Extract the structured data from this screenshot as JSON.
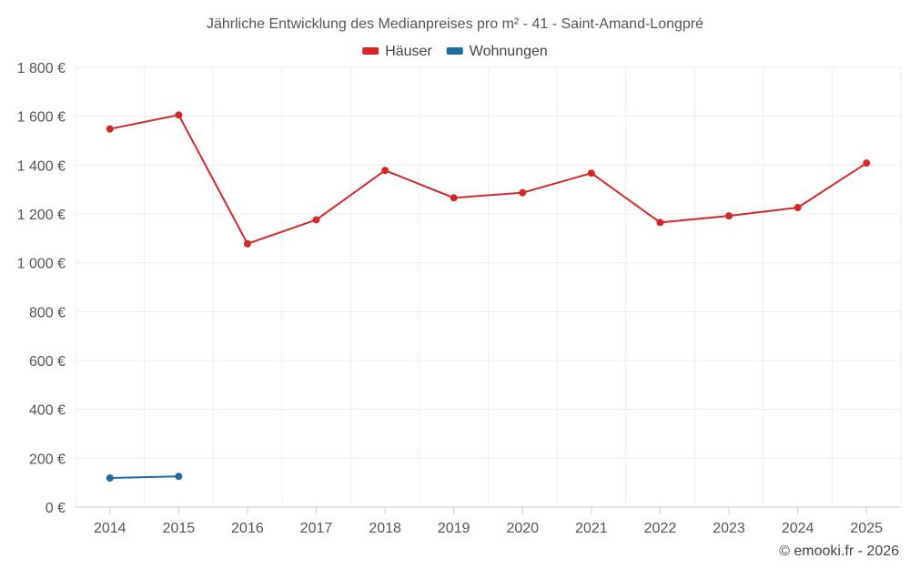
{
  "chart_data": {
    "type": "line",
    "title": "Jährliche Entwicklung des Medianpreises pro m² - 41 - Saint-Amand-Longpré",
    "categories": [
      "2014",
      "2015",
      "2016",
      "2017",
      "2018",
      "2019",
      "2020",
      "2021",
      "2022",
      "2023",
      "2024",
      "2025"
    ],
    "ylim": [
      0,
      1800
    ],
    "yticks": [
      0,
      200,
      400,
      600,
      800,
      1000,
      1200,
      1400,
      1600,
      1800
    ],
    "ytick_labels": [
      "0 €",
      "200 €",
      "400 €",
      "600 €",
      "800 €",
      "1 000 €",
      "1 200 €",
      "1 400 €",
      "1 600 €",
      "1 800 €"
    ],
    "grid": true,
    "legend_position": "top-center",
    "series": [
      {
        "name": "Häuser",
        "color": "#d62728",
        "values": [
          1548,
          1605,
          1078,
          1176,
          1378,
          1266,
          1287,
          1367,
          1165,
          1192,
          1226,
          1408
        ]
      },
      {
        "name": "Wohnungen",
        "color": "#1f6ca1",
        "values": [
          119,
          126,
          null,
          null,
          null,
          null,
          null,
          null,
          null,
          null,
          null,
          null
        ]
      }
    ],
    "credit": "© emooki.fr - 2026"
  }
}
